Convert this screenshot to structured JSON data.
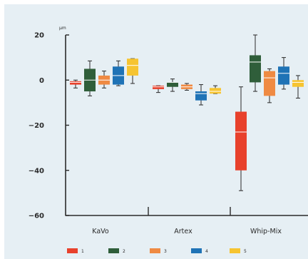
{
  "chart_data": {
    "type": "box",
    "unit": "µm",
    "ylim": [
      -60,
      20
    ],
    "yticks": [
      {
        "value": 20,
        "label": "20"
      },
      {
        "value": 0,
        "label": "0"
      },
      {
        "value": -20,
        "label": "−20"
      },
      {
        "value": -40,
        "label": "−40"
      },
      {
        "value": -60,
        "label": "−60"
      }
    ],
    "categories": [
      "KaVo",
      "Artex",
      "Whip-Mix"
    ],
    "grid": false,
    "legend_position": "bottom",
    "series": [
      {
        "name": "1",
        "color": "#e8412c"
      },
      {
        "name": "2",
        "color": "#2f5e3a"
      },
      {
        "name": "3",
        "color": "#ef8a43"
      },
      {
        "name": "4",
        "color": "#1f73b6"
      },
      {
        "name": "5",
        "color": "#f6c431"
      }
    ],
    "boxes": [
      [
        {
          "min": -3.5,
          "q1": -2,
          "median": -1,
          "q3": -0.5,
          "max": 0
        },
        {
          "min": -7,
          "q1": -5,
          "median": 0,
          "q3": 5,
          "max": 8.5
        },
        {
          "min": -3.5,
          "q1": -2,
          "median": 0,
          "q3": 2,
          "max": 4
        },
        {
          "min": -2.5,
          "q1": -2,
          "median": 2,
          "q3": 6,
          "max": 8.5
        },
        {
          "min": -1.5,
          "q1": 2,
          "median": 6.5,
          "q3": 9.5,
          "max": 9.5
        }
      ],
      [
        {
          "min": -5.5,
          "q1": -4,
          "median": -3,
          "q3": -2.5,
          "max": -2.5
        },
        {
          "min": -5,
          "q1": -3,
          "median": -1,
          "q3": -1,
          "max": 0.5
        },
        {
          "min": -4.5,
          "q1": -4,
          "median": -3,
          "q3": -2,
          "max": -1.5
        },
        {
          "min": -11,
          "q1": -9,
          "median": -6,
          "q3": -5,
          "max": -2
        },
        {
          "min": -6,
          "q1": -6,
          "median": -5,
          "q3": -3.5,
          "max": -2.5
        }
      ],
      [
        {
          "min": -49,
          "q1": -40,
          "median": -23,
          "q3": -14,
          "max": -3
        },
        {
          "min": -5,
          "q1": -1,
          "median": 8,
          "q3": 11,
          "max": 20
        },
        {
          "min": -10,
          "q1": -7,
          "median": 1,
          "q3": 4,
          "max": 5
        },
        {
          "min": -4,
          "q1": -2,
          "median": 3,
          "q3": 6,
          "max": 10
        },
        {
          "min": -8,
          "q1": -3,
          "median": -1,
          "q3": 0,
          "max": 2
        }
      ]
    ]
  }
}
